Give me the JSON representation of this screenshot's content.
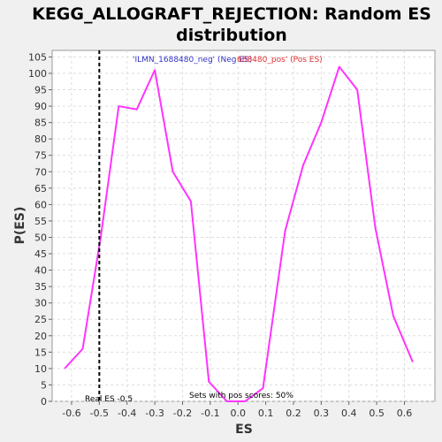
{
  "chart_data": {
    "type": "line",
    "title_line1": "KEGG_ALLOGRAFT_REJECTION: Random ES",
    "title_line2": "distribution",
    "xlabel": "ES",
    "ylabel": "P(ES)",
    "xlim": [
      -0.67,
      0.71
    ],
    "ylim": [
      0,
      107
    ],
    "x_ticks": [
      -0.6,
      -0.5,
      -0.4,
      -0.3,
      -0.2,
      -0.1,
      0.0,
      0.1,
      0.2,
      0.3,
      0.4,
      0.5,
      0.6
    ],
    "x_tick_labels": [
      "-0.6",
      "-0.5",
      "-0.4",
      "-0.3",
      "-0.2",
      "-0.1",
      "0.0",
      "0.1",
      "0.2",
      "0.3",
      "0.4",
      "0.5",
      "0.6"
    ],
    "y_ticks": [
      0,
      5,
      10,
      15,
      20,
      25,
      30,
      35,
      40,
      45,
      50,
      55,
      60,
      65,
      70,
      75,
      80,
      85,
      90,
      95,
      100,
      105
    ],
    "grid": true,
    "series": [
      {
        "color": "#ff33ff",
        "x": [
          -0.625,
          -0.56,
          -0.495,
          -0.43,
          -0.365,
          -0.3,
          -0.235,
          -0.17,
          -0.105,
          -0.04,
          0.025,
          0.09,
          0.17,
          0.235,
          0.3,
          0.365,
          0.43,
          0.495,
          0.56,
          0.63
        ],
        "y": [
          10,
          16,
          50,
          90,
          89,
          101,
          70,
          61,
          6,
          0,
          0,
          4,
          52,
          72,
          85,
          102,
          95,
          53,
          26,
          12
        ]
      }
    ],
    "real_es": {
      "x": -0.5,
      "label": "Real ES -0.5",
      "color": "#000000"
    },
    "annotations": {
      "neg_label": "'ILMN_1688480_neg' (Neg ES)",
      "neg_color": "#3333cc",
      "pos_label": "688480_pos' (Pos ES)",
      "pos_color": "#e03030",
      "sets_pos": "Sets with pos scores: 50%"
    }
  }
}
